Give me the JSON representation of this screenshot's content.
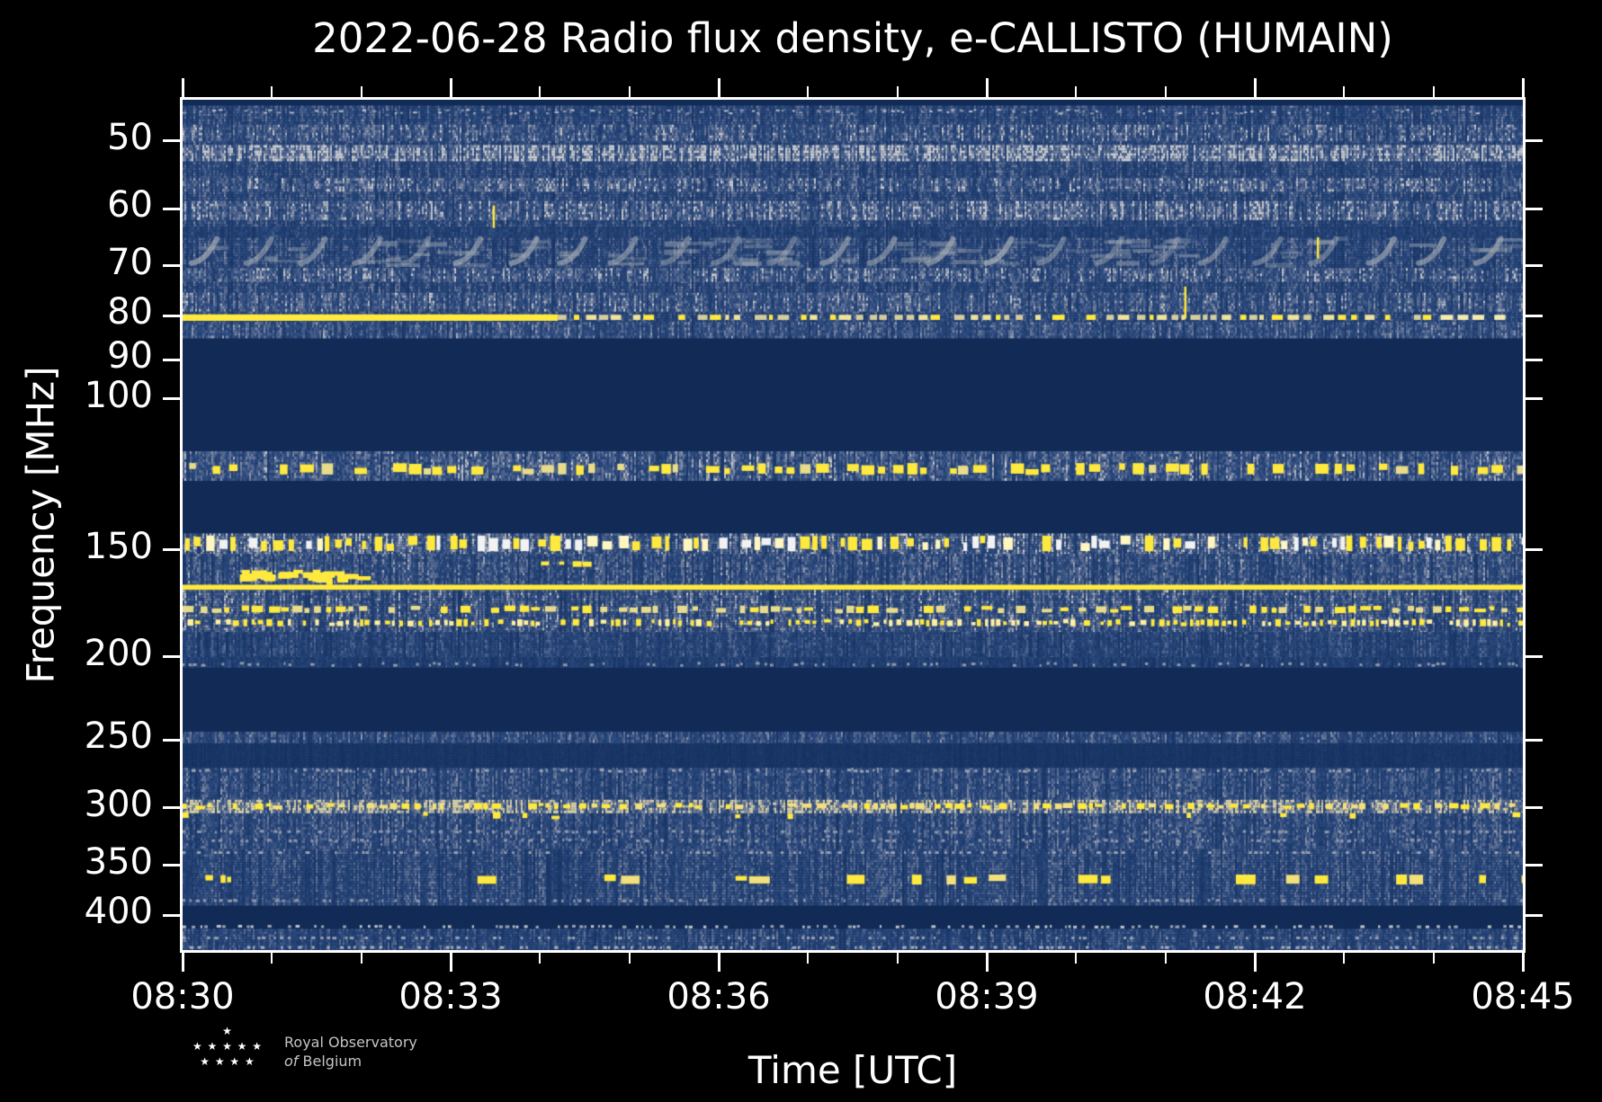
{
  "chart_data": {
    "type": "heatmap",
    "title": "2022-06-28 Radio flux density, e-CALLISTO (HUMAIN)",
    "xlabel": "Time [UTC]",
    "ylabel": "Frequency [MHz]",
    "x_tick_labels": [
      "08:30",
      "08:33",
      "08:36",
      "08:39",
      "08:42",
      "08:45"
    ],
    "x_major_interval_min": 3,
    "x_minor_interval_min": 1,
    "y_scale": "log",
    "y_range_mhz": [
      44.8,
      439.3
    ],
    "y_ticks_mhz": [
      50,
      60,
      70,
      80,
      90,
      100,
      150,
      200,
      250,
      300,
      350,
      400
    ],
    "grid": false,
    "legend": "none",
    "palette": {
      "background": "#112b56",
      "noise_dark": "#14305f",
      "noise_mid": "#2c4a7e",
      "noise_slate": "#6f7c9a",
      "noise_light": "#c9ccce",
      "warm_light": "#d8d0a4",
      "yellow": "#ffe93e",
      "frame": "#ffffff"
    },
    "bands": [
      {
        "style": "noise",
        "f0": 45.5,
        "f1": 84.6,
        "light": 0.4
      },
      {
        "style": "dot",
        "f0": 45.9,
        "f1": 46.6,
        "density": 0.55,
        "h": 2,
        "colors": [
          "#8e97a9",
          "#b9bec7"
        ]
      },
      {
        "style": "noise",
        "f0": 47.9,
        "f1": 50.0,
        "light": 0.52
      },
      {
        "style": "noise",
        "f0": 50.6,
        "f1": 52.7,
        "light": 0.78
      },
      {
        "style": "noise",
        "f0": 55.3,
        "f1": 57.3,
        "light": 0.55
      },
      {
        "style": "noise",
        "f0": 58.8,
        "f1": 61.7,
        "light": 0.6
      },
      {
        "style": "noise",
        "f0": 63.0,
        "f1": 64.6,
        "light": 0.28
      },
      {
        "style": "wavy",
        "f0": 64.6,
        "f1": 69.8,
        "color": "#aab0b6",
        "period": 57,
        "lw": 6
      },
      {
        "style": "noise",
        "f0": 70.4,
        "f1": 72.9,
        "light": 0.55
      },
      {
        "style": "noise",
        "f0": 75.2,
        "f1": 79.0,
        "light": 0.5
      },
      {
        "style": "line",
        "f0": 79.7,
        "f1": 81.1,
        "color": "#ffe93e",
        "solid_until": 0.28,
        "tail_density": 0.55,
        "tail_colors": [
          "#d6cd9d",
          "#efe29a",
          "#ffe93e"
        ]
      },
      {
        "style": "noise",
        "f0": 81.4,
        "f1": 84.6,
        "light": 0.45
      },
      {
        "style": "noise",
        "f0": 115.1,
        "f1": 124.6,
        "light": 0.5
      },
      {
        "style": "dash",
        "f0": 118.8,
        "f1": 122.7,
        "density": 0.4,
        "wmin": 6,
        "wmax": 16,
        "colors": [
          "#ffe93e",
          "#ffe93e",
          "#e8dc8a"
        ]
      },
      {
        "style": "noise",
        "f0": 143.5,
        "f1": 151.6,
        "light": 0.58
      },
      {
        "style": "dash",
        "f0": 144.3,
        "f1": 150.6,
        "density": 0.62,
        "wmin": 4,
        "wmax": 12,
        "colors": [
          "#ffe93e",
          "#ffe93e",
          "#fff6c0",
          "#f2f2f2"
        ]
      },
      {
        "style": "noise",
        "f0": 151.6,
        "f1": 164.7,
        "light": 0.45
      },
      {
        "style": "blobs",
        "f0": 158.0,
        "f1": 165.0,
        "x0": 0.032,
        "x1": 0.142,
        "n": 10,
        "color": "#ffe93e"
      },
      {
        "style": "dash",
        "f0": 154.5,
        "f1": 157.0,
        "x0": 0.265,
        "x1": 0.305,
        "density": 0.5,
        "wmin": 5,
        "wmax": 12,
        "colors": [
          "#ffe93e"
        ]
      },
      {
        "style": "line",
        "f0": 164.7,
        "f1": 167.1,
        "color": "#ffe93e",
        "solid_until": 1
      },
      {
        "style": "noise",
        "f0": 167.1,
        "f1": 186.9,
        "light": 0.5
      },
      {
        "style": "dash",
        "f0": 174.2,
        "f1": 177.8,
        "density": 0.48,
        "wmin": 5,
        "wmax": 13,
        "colors": [
          "#ffe93e",
          "#e8dc8a"
        ]
      },
      {
        "style": "dash",
        "f0": 180.6,
        "f1": 184.2,
        "density": 0.75,
        "wmin": 3,
        "wmax": 7,
        "colors": [
          "#ffe93e",
          "#fff0a0"
        ]
      },
      {
        "style": "noise",
        "f0": 186.9,
        "f1": 200.0,
        "light": 0.34
      },
      {
        "style": "noise",
        "f0": 200.0,
        "f1": 204.5,
        "light": 0.24
      },
      {
        "style": "dot",
        "f0": 202.6,
        "f1": 205.4,
        "density": 0.5,
        "h": 3,
        "colors": [
          "#8e97a9"
        ]
      },
      {
        "style": "noise",
        "f0": 244.4,
        "f1": 251.9,
        "light": 0.42
      },
      {
        "style": "noise",
        "f0": 252.0,
        "f1": 269.0,
        "light": 0.1
      },
      {
        "style": "noise",
        "f0": 269.2,
        "f1": 334.8,
        "light": 0.42
      },
      {
        "style": "dot",
        "f0": 269.8,
        "f1": 272.9,
        "density": 0.5,
        "h": 3,
        "colors": [
          "#98a0b0"
        ]
      },
      {
        "style": "noise",
        "f0": 293.4,
        "f1": 302.4,
        "light": 0.8,
        "warm": true
      },
      {
        "style": "dash",
        "f0": 295.9,
        "f1": 301.1,
        "density": 0.5,
        "wmin": 4,
        "wmax": 11,
        "colors": [
          "#ffe93e",
          "#f4e07a"
        ]
      },
      {
        "style": "dash",
        "f0": 303.1,
        "f1": 309.2,
        "density": 0.07,
        "wmin": 4,
        "wmax": 9,
        "colors": [
          "#ffe93e"
        ]
      },
      {
        "style": "dot",
        "f0": 318.1,
        "f1": 321.4,
        "density": 0.45,
        "h": 3,
        "colors": [
          "#8e97a9"
        ]
      },
      {
        "style": "dot",
        "f0": 325.6,
        "f1": 329.1,
        "density": 0.4,
        "h": 3,
        "colors": [
          "#8e97a9"
        ]
      },
      {
        "style": "noise",
        "f0": 334.8,
        "f1": 387.5,
        "light": 0.4
      },
      {
        "style": "dot",
        "f0": 336.9,
        "f1": 339.4,
        "density": 0.45,
        "h": 3,
        "colors": [
          "#98a0b0"
        ]
      },
      {
        "style": "dash",
        "f0": 358.6,
        "f1": 368.4,
        "x0": 0.008,
        "x1": 0.034,
        "density": 0.5,
        "wmin": 4,
        "wmax": 9,
        "colors": [
          "#ffe93e"
        ]
      },
      {
        "style": "dash",
        "f0": 358.6,
        "f1": 368.4,
        "x0": 0.22,
        "x1": 1,
        "density": 0.1,
        "wmin": 7,
        "wmax": 24,
        "colors": [
          "#ffe93e",
          "#ffe93e",
          "#f4e07a"
        ]
      },
      {
        "style": "dot",
        "f0": 382.9,
        "f1": 386.4,
        "density": 0.45,
        "h": 3,
        "colors": [
          "#8e97a9"
        ]
      },
      {
        "style": "dot",
        "f0": 410.5,
        "f1": 414.5,
        "density": 0.55,
        "h": 3,
        "colors": [
          "#9aa2b2",
          "#c0c4ca"
        ]
      },
      {
        "style": "noise",
        "f0": 415.0,
        "f1": 439.2,
        "light": 0.38
      },
      {
        "style": "dot",
        "f0": 423.5,
        "f1": 427.0,
        "density": 0.4,
        "h": 3,
        "colors": [
          "#98a0b0"
        ]
      },
      {
        "style": "dot",
        "f0": 434.5,
        "f1": 438.0,
        "density": 0.5,
        "h": 3,
        "colors": [
          "#a8aeba"
        ]
      }
    ],
    "transients": [
      {
        "x": 0.232,
        "f0": 59.5,
        "f1": 63.2,
        "color": "#ffe93e"
      },
      {
        "x": 0.748,
        "f0": 74.0,
        "f1": 80.6,
        "color": "#ffe93e"
      },
      {
        "x": 0.847,
        "f0": 64.8,
        "f1": 68.6,
        "color": "#ffe93e"
      }
    ]
  },
  "logo": {
    "star_row1": "★",
    "star_row2": "★ ★ ★ ★ ★",
    "star_row3": "★ ★ ★ ★",
    "line1": "Royal Observatory",
    "line2_italic": "of",
    "line2_rest": "Belgium"
  }
}
